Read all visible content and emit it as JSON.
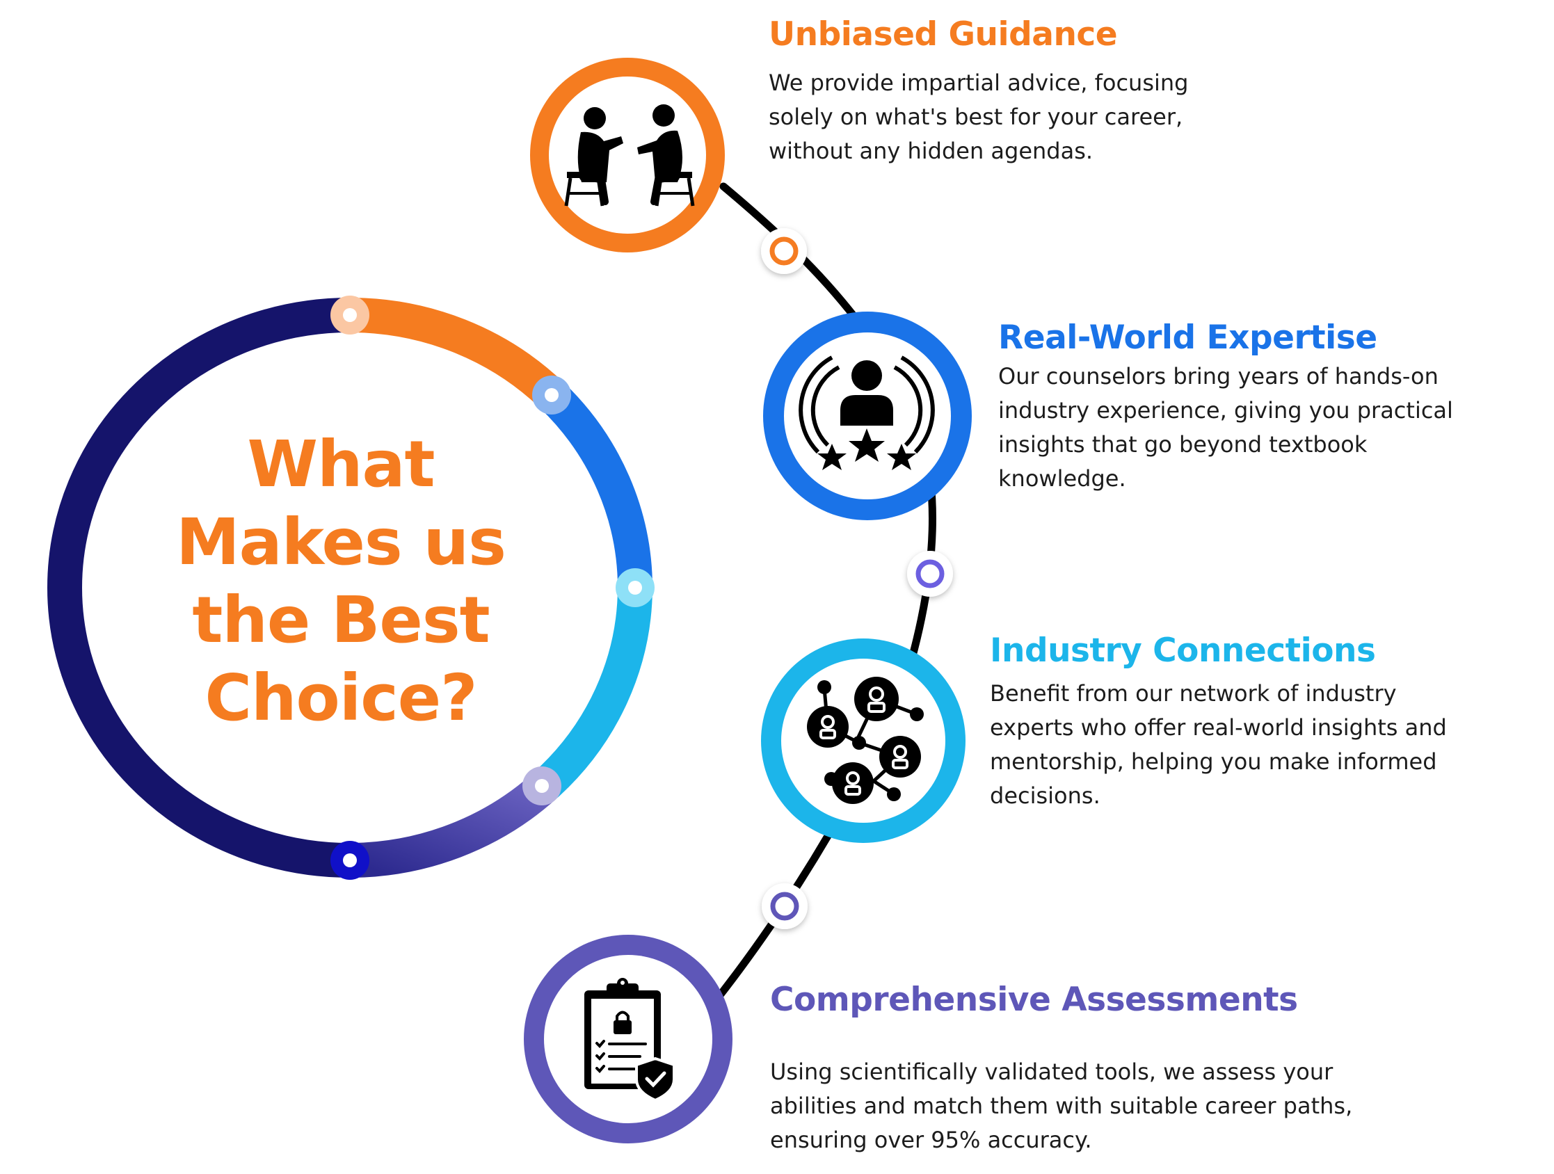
{
  "title_lines": [
    "What",
    "Makes us",
    "the Best",
    "Choice?"
  ],
  "colors": {
    "orange": "#f57c20",
    "blue": "#1a73e8",
    "cyan": "#1cb5ea",
    "purple": "#5e57b8",
    "navy": "#15146b",
    "indigo": "#5a55b6",
    "text": "#1c1c1c"
  },
  "features": [
    {
      "icon": "two-people-talking-icon",
      "heading": "Unbiased Guidance",
      "color": "#f57c20",
      "lines": [
        "We provide impartial advice, focusing",
        "solely on what's best for your career,",
        "without any hidden agendas."
      ]
    },
    {
      "icon": "expert-stars-icon",
      "heading": "Real-World Expertise",
      "color": "#1a73e8",
      "lines": [
        "Our counselors bring years of hands-on",
        "industry experience, giving you practical",
        "insights that go beyond textbook",
        "knowledge."
      ]
    },
    {
      "icon": "network-people-icon",
      "heading": "Industry Connections",
      "color": "#1cb5ea",
      "lines": [
        "Benefit from our network of industry",
        "experts who offer real-world insights and",
        "mentorship, helping you make informed",
        "decisions."
      ]
    },
    {
      "icon": "clipboard-shield-icon",
      "heading": "Comprehensive Assessments",
      "color": "#5e57b8",
      "lines": [
        "Using scientifically validated tools, we assess your",
        "abilities and match them with suitable career paths,",
        "ensuring over 95% accuracy."
      ]
    }
  ]
}
